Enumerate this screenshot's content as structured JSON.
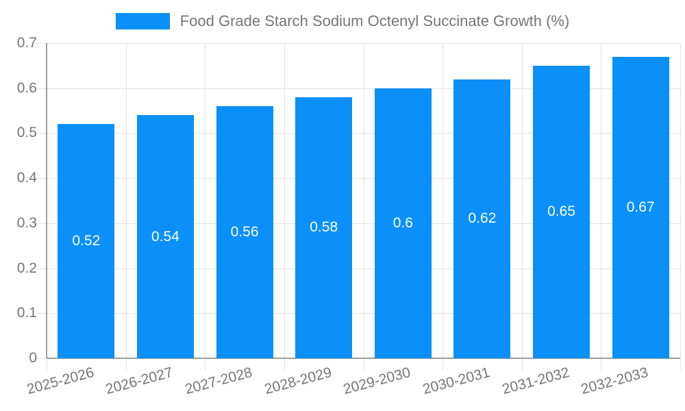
{
  "legend": {
    "label": "Food Grade Starch Sodium Octenyl Succinate Growth (%)"
  },
  "chart_data": {
    "type": "bar",
    "title": "Food Grade Starch Sodium Octenyl Succinate Growth (%)",
    "categories": [
      "2025-2026",
      "2026-2027",
      "2027-2028",
      "2028-2029",
      "2029-2030",
      "2030-2031",
      "2031-2032",
      "2032-2033"
    ],
    "values": [
      0.52,
      0.54,
      0.56,
      0.58,
      0.6,
      0.62,
      0.65,
      0.67
    ],
    "bar_labels": [
      "0.52",
      "0.54",
      "0.56",
      "0.58",
      "0.6",
      "0.62",
      "0.65",
      "0.67"
    ],
    "xlabel": "",
    "ylabel": "",
    "ylim": [
      0,
      0.7
    ],
    "y_tick_labels": [
      "0",
      "0.1",
      "0.2",
      "0.3",
      "0.4",
      "0.5",
      "0.6",
      "0.7"
    ],
    "grid": true,
    "legend_position": "top",
    "colors": {
      "bar": "#0a90f8",
      "bar_label": "#ffffff",
      "axis_text": "#757575",
      "gridline": "#e3e3e3",
      "axis_line": "#9e9e9e",
      "background": "#ffffff"
    }
  }
}
